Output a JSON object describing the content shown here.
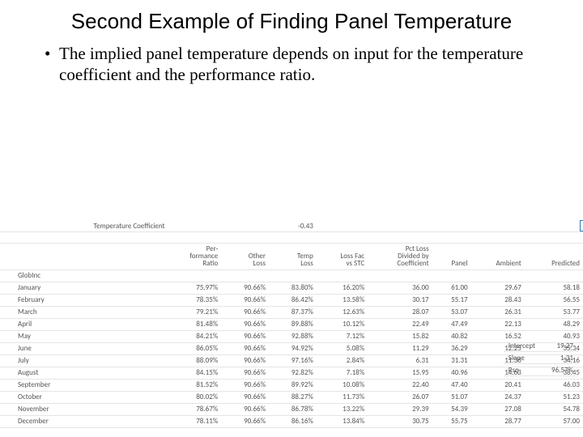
{
  "title": "Second Example of Finding Panel Temperature",
  "bullet": "The implied panel temperature depends on input for the temperature coefficient and the performance ratio.",
  "coef": {
    "label": "Temperature Coefficient",
    "value": "-0.43"
  },
  "headers": {
    "c1": "Per-\nformance\nRatio",
    "c2": "Other\nLoss",
    "c3": "Temp\nLoss",
    "c4": "Loss Fac\nvs STC",
    "c5": "Pct Loss\nDivided by\nCoefficient",
    "c6": "Panel",
    "c7": "Ambient",
    "c8": "Predicted"
  },
  "globInc": "GlobInc",
  "rows": [
    {
      "m": "January",
      "pr": "75.97%",
      "ol": "90.66%",
      "tl": "83.80%",
      "lf": "16.20%",
      "pc": "36.00",
      "pn": "61.00",
      "am": "29.67",
      "pd": "58.18"
    },
    {
      "m": "February",
      "pr": "78.35%",
      "ol": "90.66%",
      "tl": "86.42%",
      "lf": "13.58%",
      "pc": "30.17",
      "pn": "55.17",
      "am": "28.43",
      "pd": "56.55"
    },
    {
      "m": "March",
      "pr": "79.21%",
      "ol": "90.66%",
      "tl": "87.37%",
      "lf": "12.63%",
      "pc": "28.07",
      "pn": "53.07",
      "am": "26.31",
      "pd": "53.77"
    },
    {
      "m": "April",
      "pr": "81.48%",
      "ol": "90.66%",
      "tl": "89.88%",
      "lf": "10.12%",
      "pc": "22.49",
      "pn": "47.49",
      "am": "22.13",
      "pd": "48.29"
    },
    {
      "m": "May",
      "pr": "84.21%",
      "ol": "90.66%",
      "tl": "92.88%",
      "lf": "7.12%",
      "pc": "15.82",
      "pn": "40.82",
      "am": "16.52",
      "pd": "40.93"
    },
    {
      "m": "June",
      "pr": "86.05%",
      "ol": "90.66%",
      "tl": "94.92%",
      "lf": "5.08%",
      "pc": "11.29",
      "pn": "36.29",
      "am": "12.25",
      "pd": "35.34"
    },
    {
      "m": "July",
      "pr": "88.09%",
      "ol": "90.66%",
      "tl": "97.16%",
      "lf": "2.84%",
      "pc": "6.31",
      "pn": "31.31",
      "am": "11.36",
      "pd": "34.16"
    },
    {
      "m": "August",
      "pr": "84.15%",
      "ol": "90.66%",
      "tl": "92.82%",
      "lf": "7.18%",
      "pc": "15.95",
      "pn": "40.96",
      "am": "14.63",
      "pd": "38.45"
    },
    {
      "m": "September",
      "pr": "81.52%",
      "ol": "90.66%",
      "tl": "89.92%",
      "lf": "10.08%",
      "pc": "22.40",
      "pn": "47.40",
      "am": "20.41",
      "pd": "46.03"
    },
    {
      "m": "October",
      "pr": "80.02%",
      "ol": "90.66%",
      "tl": "88.27%",
      "lf": "11.73%",
      "pc": "26.07",
      "pn": "51.07",
      "am": "24.37",
      "pd": "51.23"
    },
    {
      "m": "November",
      "pr": "78.67%",
      "ol": "90.66%",
      "tl": "86.78%",
      "lf": "13.22%",
      "pc": "29.39",
      "pn": "54.39",
      "am": "27.08",
      "pd": "54.78"
    },
    {
      "m": "December",
      "pr": "78.11%",
      "ol": "90.66%",
      "tl": "86.16%",
      "lf": "13.84%",
      "pc": "30.75",
      "pn": "55.75",
      "am": "28.77",
      "pd": "57.00"
    }
  ],
  "side": {
    "intercept": {
      "label": "Intercept",
      "value": "19.27"
    },
    "slope": {
      "label": "Slope",
      "value": "1.31"
    },
    "rsq": {
      "label": "Rsq",
      "value": "96.57%"
    }
  }
}
